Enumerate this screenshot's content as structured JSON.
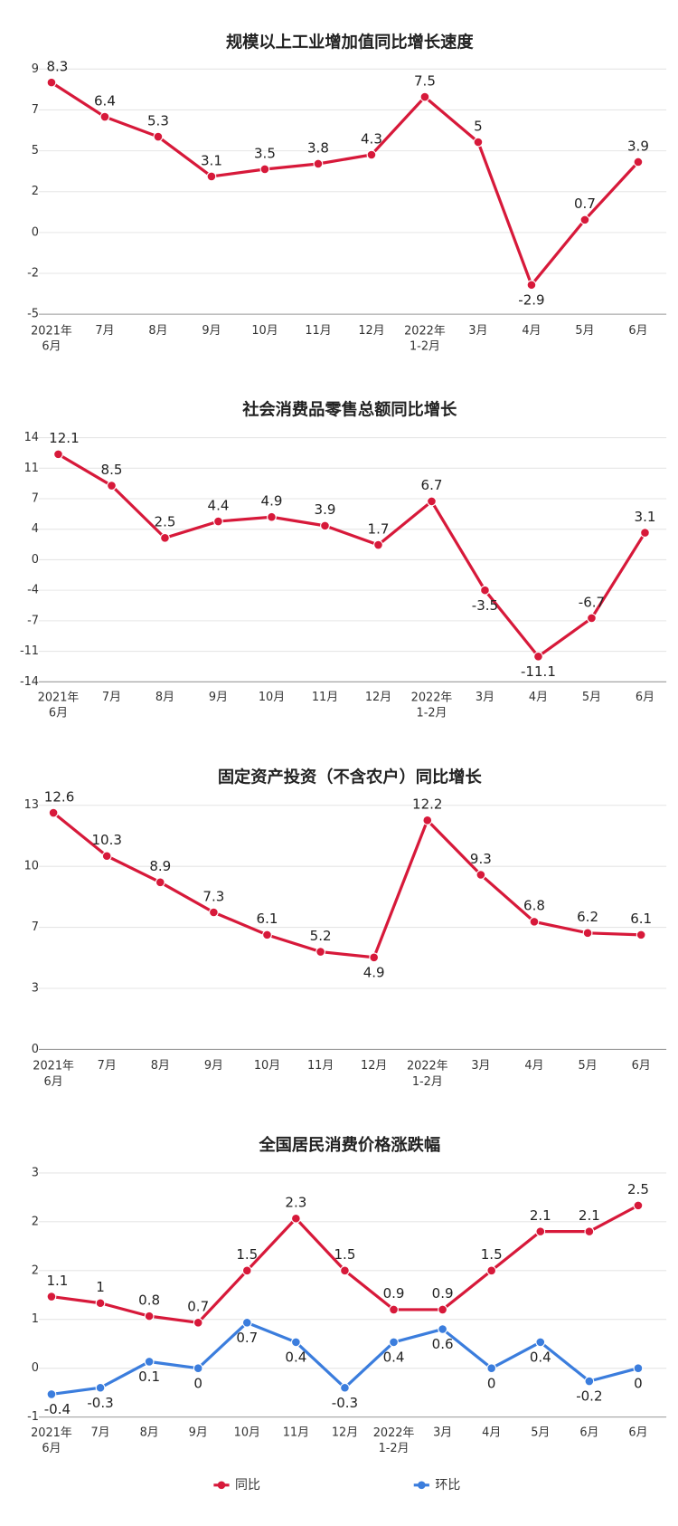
{
  "chart_data": [
    {
      "type": "line",
      "title": "规模以上工业增加值同比增长速度",
      "categories": [
        "2021年6月",
        "7月",
        "8月",
        "9月",
        "10月",
        "11月",
        "12月",
        "2022年1-2月",
        "3月",
        "4月",
        "5月",
        "6月"
      ],
      "values": [
        8.3,
        6.4,
        5.3,
        3.1,
        3.5,
        3.8,
        4.3,
        7.5,
        5,
        -2.9,
        0.7,
        3.9
      ],
      "color": "#d7193a",
      "ylim": [
        -4.52,
        9.04
      ],
      "yticks": [
        {
          "value": -4.52,
          "label": "-5"
        },
        {
          "value": -2.26,
          "label": "-2"
        },
        0,
        {
          "value": 2.26,
          "label": "2"
        },
        {
          "value": 4.52,
          "label": "5"
        },
        {
          "value": 6.78,
          "label": "7"
        },
        {
          "value": 9.04,
          "label": "9"
        }
      ],
      "grid": true
    },
    {
      "type": "line",
      "title": "社会消费品零售总额同比增长",
      "categories": [
        "2021年6月",
        "7月",
        "8月",
        "9月",
        "10月",
        "11月",
        "12月",
        "2022年1-2月",
        "3月",
        "4月",
        "5月",
        "6月"
      ],
      "values": [
        12.1,
        8.5,
        2.5,
        4.4,
        4.9,
        3.9,
        1.7,
        6.7,
        -3.5,
        -11.1,
        -6.7,
        3.1
      ],
      "color": "#d7193a",
      "ylim": [
        -14,
        14
      ],
      "yticks": [
        -14,
        {
          "value": -10.5,
          "label": "-11"
        },
        -7,
        {
          "value": -3.5,
          "label": "-4"
        },
        0,
        {
          "value": 3.5,
          "label": "4"
        },
        7,
        {
          "value": 10.5,
          "label": "11"
        },
        14
      ],
      "grid": true
    },
    {
      "type": "line",
      "title": "固定资产投资（不含农户）同比增长",
      "categories": [
        "2021年6月",
        "7月",
        "8月",
        "9月",
        "10月",
        "11月",
        "12月",
        "2022年1-2月",
        "3月",
        "4月",
        "5月",
        "6月"
      ],
      "values": [
        12.6,
        10.3,
        8.9,
        7.3,
        6.1,
        5.2,
        4.9,
        12.2,
        9.3,
        6.8,
        6.2,
        6.1
      ],
      "color": "#d7193a",
      "ylim": [
        0,
        13
      ],
      "yticks": [
        0,
        {
          "value": 3.25,
          "label": "3"
        },
        {
          "value": 6.5,
          "label": "7"
        },
        {
          "value": 9.75,
          "label": "10"
        },
        13
      ],
      "grid": true
    },
    {
      "type": "line",
      "title": "全国居民消费价格涨跌幅",
      "categories": [
        "2021年6月",
        "7月",
        "8月",
        "9月",
        "10月",
        "11月",
        "12月",
        "2022年1-2月",
        "3月",
        "4月",
        "5月",
        "6月",
        "6月"
      ],
      "series": [
        {
          "name": "同比",
          "color": "#d7193a",
          "values": [
            1.1,
            1,
            0.8,
            0.7,
            1.5,
            2.3,
            1.5,
            0.9,
            0.9,
            1.5,
            2.1,
            2.1,
            2.5
          ]
        },
        {
          "name": "环比",
          "color": "#3b7ddd",
          "values": [
            -0.4,
            -0.3,
            0.1,
            0,
            0.7,
            0.4,
            -0.3,
            0.4,
            0.6,
            0,
            0.4,
            -0.2,
            0
          ]
        }
      ],
      "ylim": [
        -0.75,
        3
      ],
      "yticks": [
        {
          "value": -0.75,
          "label": "-1"
        },
        0,
        {
          "value": 0.75,
          "label": "1"
        },
        {
          "value": 1.5,
          "label": "2"
        },
        {
          "value": 2.25,
          "label": "2"
        },
        3
      ],
      "grid": true
    }
  ]
}
